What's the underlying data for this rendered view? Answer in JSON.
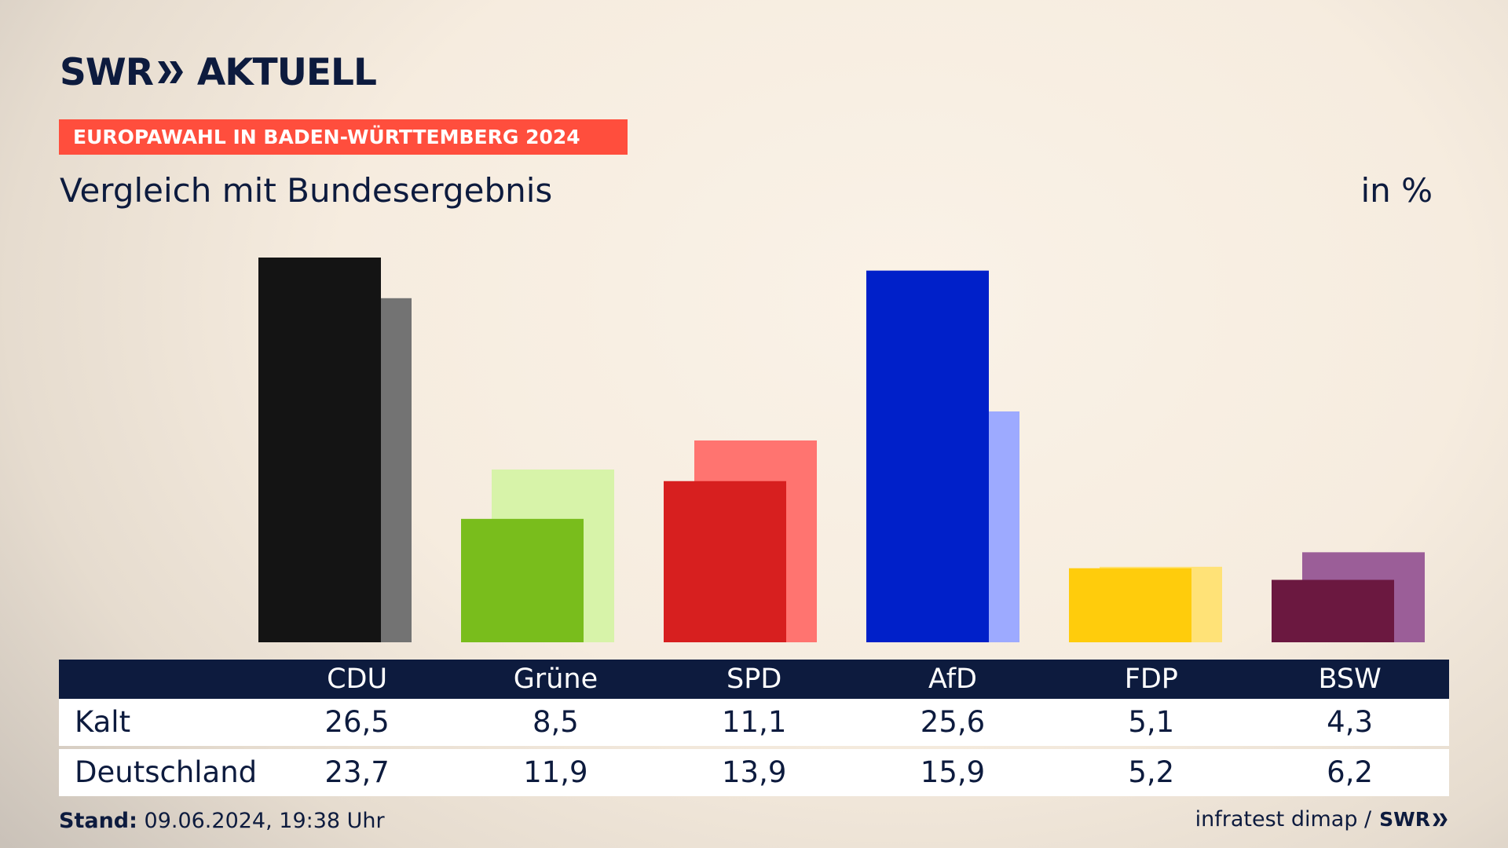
{
  "logo": {
    "brand": "SWR",
    "name": "AKTUELL"
  },
  "kicker": "EUROPAWAHL IN BADEN-WÜRTTEMBERG 2024",
  "subtitle": "Vergleich mit Bundesergebnis",
  "unit": "in %",
  "chart_data": {
    "type": "bar",
    "categories": [
      "CDU",
      "Grüne",
      "SPD",
      "AfD",
      "FDP",
      "BSW"
    ],
    "series": [
      {
        "name": "Kalt",
        "values": [
          26.5,
          8.5,
          11.1,
          25.6,
          5.1,
          4.3
        ]
      },
      {
        "name": "Deutschland",
        "values": [
          23.7,
          11.9,
          13.9,
          15.9,
          5.2,
          6.2
        ]
      }
    ],
    "colors": {
      "Kalt": [
        "#141414",
        "#79bd1c",
        "#d71f1f",
        "#0020c9",
        "#ffcc0c",
        "#6b1840"
      ],
      "Deutschland": [
        "#737373",
        "#d7f3a9",
        "#ff7470",
        "#9daaff",
        "#ffe277",
        "#9b5e98"
      ]
    },
    "ylim": [
      0,
      26.5
    ],
    "grid": false,
    "legend": "table-below"
  },
  "table": {
    "rows": [
      {
        "label": "Kalt",
        "values": [
          "26,5",
          "8,5",
          "11,1",
          "25,6",
          "5,1",
          "4,3"
        ]
      },
      {
        "label": "Deutschland",
        "values": [
          "23,7",
          "11,9",
          "13,9",
          "15,9",
          "5,2",
          "6,2"
        ]
      }
    ]
  },
  "footer": {
    "stand_label": "Stand:",
    "stand_value": "09.06.2024, 19:38 Uhr",
    "source": "infratest dimap /",
    "source_logo": "SWR"
  }
}
